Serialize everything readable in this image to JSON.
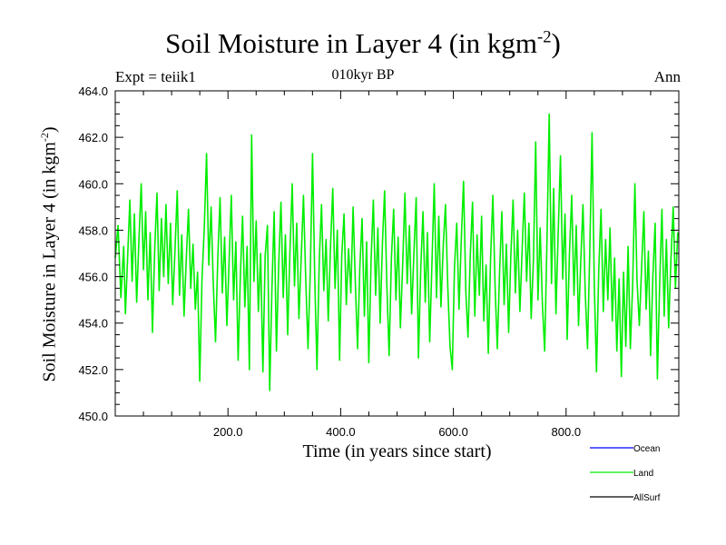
{
  "chart_data": {
    "type": "line",
    "title": "Soil Moisture in Layer 4 (in kgm",
    "title_sup": "-2",
    "title_end": ")",
    "subtitle": "010kyr BP",
    "expt_label": "Expt = teiik1",
    "period_label": "Ann",
    "xlabel": "Time (in years since start)",
    "ylabel": "Soil Moisture in Layer 4 (in kgm",
    "ylabel_sup": "-2",
    "ylabel_end": ")",
    "xlim": [
      0,
      1000
    ],
    "ylim": [
      450.0,
      464.0
    ],
    "xticks": [
      200.0,
      400.0,
      600.0,
      800.0
    ],
    "xtick_labels": [
      "200.0",
      "400.0",
      "600.0",
      "800.0"
    ],
    "yticks": [
      450.0,
      452.0,
      454.0,
      456.0,
      458.0,
      460.0,
      462.0,
      464.0
    ],
    "ytick_labels": [
      "450.0",
      "452.0",
      "454.0",
      "456.0",
      "458.0",
      "460.0",
      "462.0",
      "464.0"
    ],
    "legend": [
      {
        "name": "Ocean",
        "color": "#0000ff"
      },
      {
        "name": "Land",
        "color": "#00ee00"
      },
      {
        "name": "AllSurf",
        "color": "#000000"
      }
    ],
    "series": [
      {
        "name": "Land",
        "color": "#00ee00",
        "points": [
          [
            0,
            456.8
          ],
          [
            5,
            458.2
          ],
          [
            10,
            455.1
          ],
          [
            15,
            457.3
          ],
          [
            18,
            454.4
          ],
          [
            22,
            456.9
          ],
          [
            26,
            459.3
          ],
          [
            30,
            455.8
          ],
          [
            34,
            458.7
          ],
          [
            38,
            454.9
          ],
          [
            42,
            457.6
          ],
          [
            46,
            460.0
          ],
          [
            50,
            456.3
          ],
          [
            54,
            458.8
          ],
          [
            58,
            455.0
          ],
          [
            62,
            457.9
          ],
          [
            66,
            453.6
          ],
          [
            70,
            457.2
          ],
          [
            74,
            459.6
          ],
          [
            78,
            455.4
          ],
          [
            82,
            458.5
          ],
          [
            86,
            456.0
          ],
          [
            90,
            459.1
          ],
          [
            94,
            455.7
          ],
          [
            98,
            458.3
          ],
          [
            102,
            454.8
          ],
          [
            106,
            457.1
          ],
          [
            110,
            459.7
          ],
          [
            114,
            455.2
          ],
          [
            118,
            457.8
          ],
          [
            122,
            454.3
          ],
          [
            126,
            456.7
          ],
          [
            130,
            458.9
          ],
          [
            134,
            455.5
          ],
          [
            138,
            457.4
          ],
          [
            142,
            454.6
          ],
          [
            146,
            456.2
          ],
          [
            150,
            451.5
          ],
          [
            154,
            455.9
          ],
          [
            158,
            458.1
          ],
          [
            162,
            461.3
          ],
          [
            166,
            456.5
          ],
          [
            170,
            459.0
          ],
          [
            174,
            455.6
          ],
          [
            178,
            453.2
          ],
          [
            182,
            456.8
          ],
          [
            186,
            459.4
          ],
          [
            190,
            455.3
          ],
          [
            194,
            457.7
          ],
          [
            198,
            453.9
          ],
          [
            202,
            456.6
          ],
          [
            206,
            459.5
          ],
          [
            210,
            455.0
          ],
          [
            214,
            457.5
          ],
          [
            218,
            452.4
          ],
          [
            222,
            456.1
          ],
          [
            226,
            458.6
          ],
          [
            230,
            454.7
          ],
          [
            234,
            457.3
          ],
          [
            238,
            452.0
          ],
          [
            242,
            462.1
          ],
          [
            246,
            455.8
          ],
          [
            250,
            458.4
          ],
          [
            254,
            454.5
          ],
          [
            258,
            457.0
          ],
          [
            262,
            451.9
          ],
          [
            266,
            456.9
          ],
          [
            270,
            458.2
          ],
          [
            274,
            451.1
          ],
          [
            278,
            455.4
          ],
          [
            282,
            458.8
          ],
          [
            286,
            452.8
          ],
          [
            290,
            456.5
          ],
          [
            294,
            459.2
          ],
          [
            298,
            455.1
          ],
          [
            302,
            457.8
          ],
          [
            306,
            453.5
          ],
          [
            310,
            457.1
          ],
          [
            314,
            460.0
          ],
          [
            318,
            455.6
          ],
          [
            322,
            458.3
          ],
          [
            326,
            454.2
          ],
          [
            330,
            456.8
          ],
          [
            334,
            459.5
          ],
          [
            338,
            455.9
          ],
          [
            342,
            452.9
          ],
          [
            346,
            456.2
          ],
          [
            350,
            461.3
          ],
          [
            354,
            456.0
          ],
          [
            358,
            452.0
          ],
          [
            362,
            456.7
          ],
          [
            366,
            459.1
          ],
          [
            370,
            455.4
          ],
          [
            374,
            457.6
          ],
          [
            378,
            454.1
          ],
          [
            382,
            457.3
          ],
          [
            386,
            459.8
          ],
          [
            390,
            455.5
          ],
          [
            394,
            458.0
          ],
          [
            398,
            452.4
          ],
          [
            402,
            456.9
          ],
          [
            406,
            458.7
          ],
          [
            410,
            454.8
          ],
          [
            414,
            457.2
          ],
          [
            418,
            455.3
          ],
          [
            422,
            459.0
          ],
          [
            426,
            455.8
          ],
          [
            430,
            452.9
          ],
          [
            434,
            456.4
          ],
          [
            438,
            458.5
          ],
          [
            442,
            454.3
          ],
          [
            446,
            457.5
          ],
          [
            450,
            452.3
          ],
          [
            454,
            456.7
          ],
          [
            458,
            459.3
          ],
          [
            462,
            455.2
          ],
          [
            466,
            458.1
          ],
          [
            470,
            454.0
          ],
          [
            474,
            457.4
          ],
          [
            478,
            459.7
          ],
          [
            482,
            455.6
          ],
          [
            486,
            452.6
          ],
          [
            490,
            456.8
          ],
          [
            494,
            458.9
          ],
          [
            498,
            455.0
          ],
          [
            502,
            457.7
          ],
          [
            506,
            453.8
          ],
          [
            510,
            456.5
          ],
          [
            514,
            459.6
          ],
          [
            518,
            455.7
          ],
          [
            522,
            458.2
          ],
          [
            526,
            454.4
          ],
          [
            530,
            457.0
          ],
          [
            534,
            459.4
          ],
          [
            538,
            452.5
          ],
          [
            542,
            456.3
          ],
          [
            546,
            458.8
          ],
          [
            550,
            454.9
          ],
          [
            554,
            457.9
          ],
          [
            558,
            453.2
          ],
          [
            562,
            456.6
          ],
          [
            566,
            460.0
          ],
          [
            570,
            455.1
          ],
          [
            574,
            458.6
          ],
          [
            578,
            454.7
          ],
          [
            582,
            457.3
          ],
          [
            586,
            459.1
          ],
          [
            590,
            455.6
          ],
          [
            594,
            453.0
          ],
          [
            598,
            452.0
          ],
          [
            602,
            456.4
          ],
          [
            606,
            458.3
          ],
          [
            610,
            454.6
          ],
          [
            614,
            457.6
          ],
          [
            618,
            460.1
          ],
          [
            622,
            455.4
          ],
          [
            626,
            453.4
          ],
          [
            630,
            456.9
          ],
          [
            634,
            459.2
          ],
          [
            638,
            454.3
          ],
          [
            642,
            457.8
          ],
          [
            646,
            455.2
          ],
          [
            650,
            458.6
          ],
          [
            654,
            454.1
          ],
          [
            658,
            456.5
          ],
          [
            662,
            452.7
          ],
          [
            666,
            456.8
          ],
          [
            670,
            459.5
          ],
          [
            674,
            455.5
          ],
          [
            678,
            452.9
          ],
          [
            682,
            456.2
          ],
          [
            686,
            458.8
          ],
          [
            690,
            454.8
          ],
          [
            694,
            457.4
          ],
          [
            698,
            453.6
          ],
          [
            702,
            456.9
          ],
          [
            706,
            459.3
          ],
          [
            710,
            455.3
          ],
          [
            714,
            458.0
          ],
          [
            718,
            454.5
          ],
          [
            722,
            457.2
          ],
          [
            726,
            459.6
          ],
          [
            730,
            455.8
          ],
          [
            734,
            458.3
          ],
          [
            738,
            454.2
          ],
          [
            742,
            456.7
          ],
          [
            746,
            461.8
          ],
          [
            750,
            455.0
          ],
          [
            754,
            458.1
          ],
          [
            758,
            454.8
          ],
          [
            762,
            452.8
          ],
          [
            766,
            457.5
          ],
          [
            770,
            463.0
          ],
          [
            774,
            455.7
          ],
          [
            778,
            459.8
          ],
          [
            782,
            454.4
          ],
          [
            786,
            457.9
          ],
          [
            790,
            461.2
          ],
          [
            794,
            455.9
          ],
          [
            798,
            458.7
          ],
          [
            802,
            453.3
          ],
          [
            806,
            457.0
          ],
          [
            810,
            459.5
          ],
          [
            814,
            455.2
          ],
          [
            818,
            458.2
          ],
          [
            822,
            453.9
          ],
          [
            826,
            456.6
          ],
          [
            830,
            459.1
          ],
          [
            834,
            455.3
          ],
          [
            838,
            452.9
          ],
          [
            842,
            457.1
          ],
          [
            846,
            462.2
          ],
          [
            850,
            455.6
          ],
          [
            854,
            451.9
          ],
          [
            858,
            456.3
          ],
          [
            862,
            458.9
          ],
          [
            866,
            454.5
          ],
          [
            870,
            457.6
          ],
          [
            874,
            455.0
          ],
          [
            878,
            458.1
          ],
          [
            882,
            454.1
          ],
          [
            886,
            456.8
          ],
          [
            890,
            452.8
          ],
          [
            894,
            455.9
          ],
          [
            898,
            451.7
          ],
          [
            902,
            456.2
          ],
          [
            906,
            453.0
          ],
          [
            910,
            457.3
          ],
          [
            914,
            452.9
          ],
          [
            918,
            455.6
          ],
          [
            922,
            460.0
          ],
          [
            926,
            455.8
          ],
          [
            930,
            453.9
          ],
          [
            934,
            456.4
          ],
          [
            938,
            458.8
          ],
          [
            942,
            454.6
          ],
          [
            946,
            457.1
          ],
          [
            950,
            452.6
          ],
          [
            954,
            456.0
          ],
          [
            958,
            458.3
          ],
          [
            962,
            451.6
          ],
          [
            966,
            455.7
          ],
          [
            970,
            458.9
          ],
          [
            974,
            454.3
          ],
          [
            978,
            457.6
          ],
          [
            982,
            453.8
          ],
          [
            986,
            456.7
          ],
          [
            990,
            459.0
          ],
          [
            994,
            455.5
          ],
          [
            998,
            457.9
          ]
        ]
      }
    ]
  }
}
